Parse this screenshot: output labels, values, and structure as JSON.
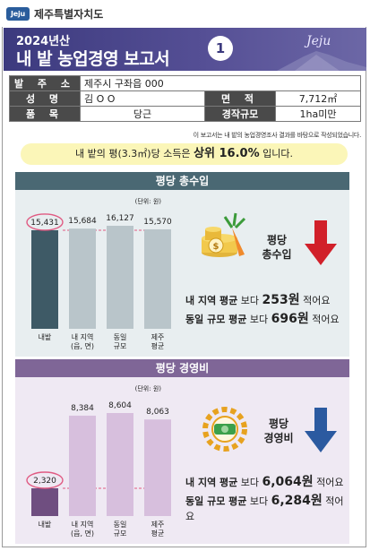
{
  "brand": {
    "logo_text": "Jeju",
    "name": "제주특별자치도"
  },
  "header": {
    "year": "2024년산",
    "title": "내 밭 농업경영 보고서",
    "number": "1",
    "script": "Jeju"
  },
  "info": {
    "address_label": "발 주 소",
    "address_value": "제주시 구좌읍 000",
    "name_label": "성 명",
    "name_value": "김 O O",
    "area_label": "면 적",
    "area_value": "7,712㎡",
    "crop_label": "품 목",
    "crop_value": "당근",
    "scale_label": "경작규모",
    "scale_value": "1ha미만",
    "note": "이 보고서는 내 밭의 농업경영조사 결과를 바탕으로 작성되었습니다."
  },
  "summary": {
    "prefix": "내 밭의 평(3.3㎡)당 소득은 ",
    "highlight": "상위 16.0%",
    "suffix": " 입니다."
  },
  "sections": {
    "revenue_title": "평당 총수입",
    "cost_title": "평당 경영비"
  },
  "revenue": {
    "side_line1": "평당",
    "side_line2": "총수입",
    "msg1_label": "내 지역 평균",
    "msg1_mid": " 보다 ",
    "msg1_value": "253원",
    "msg1_suffix": " 적어요",
    "msg2_label": "동일 규모 평균",
    "msg2_mid": " 보다 ",
    "msg2_value": "696원",
    "msg2_suffix": " 적어요",
    "colors": {
      "mine": "#3e5a66",
      "other": "#b9c5ca",
      "arrow": "#d1202a"
    },
    "icon": "coins-and-carrot-icon"
  },
  "cost": {
    "side_line1": "평당",
    "side_line2": "경영비",
    "msg1_label": "내 지역 평균",
    "msg1_mid": " 보다 ",
    "msg1_value": "6,064원",
    "msg1_suffix": " 적어요",
    "msg2_label": "동일 규모 평균",
    "msg2_mid": " 보다 ",
    "msg2_value": "6,284원",
    "msg2_suffix": " 적어요",
    "colors": {
      "mine": "#6f4e80",
      "other": "#d7bfdd",
      "arrow": "#2b5aa0"
    },
    "icon": "gear-coins-icon"
  },
  "chart_data": [
    {
      "type": "bar",
      "title": "평당 총수입",
      "unit_label": "(단위: 원)",
      "categories": [
        "내밭",
        "내 지역 (읍, 면)",
        "동일 규모",
        "제주 평균"
      ],
      "values": [
        15431,
        15684,
        16127,
        15570
      ],
      "value_labels": [
        "15,431",
        "15,684",
        "16,127",
        "15,570"
      ],
      "highlighted_index": 0
    },
    {
      "type": "bar",
      "title": "평당 경영비",
      "unit_label": "(단위: 원)",
      "categories": [
        "내밭",
        "내 지역 (읍, 면)",
        "동일 규모",
        "제주 평균"
      ],
      "values": [
        2320,
        8384,
        8604,
        8063
      ],
      "value_labels": [
        "2,320",
        "8,384",
        "8,604",
        "8,063"
      ],
      "highlighted_index": 0
    }
  ]
}
